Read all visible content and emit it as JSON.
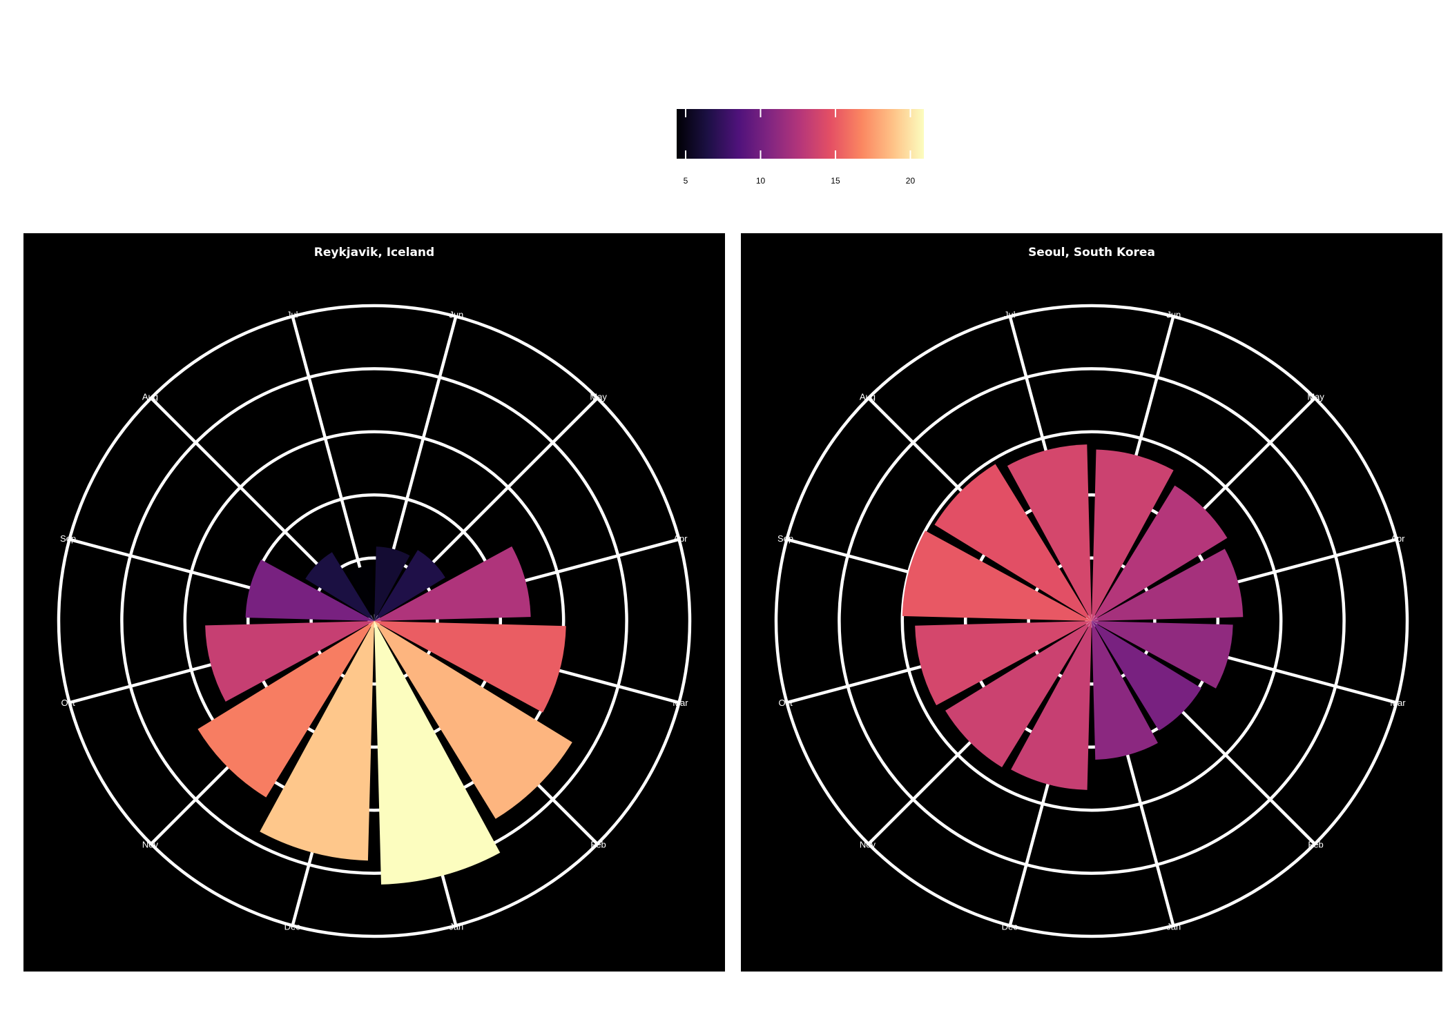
{
  "colors": {
    "background": "#ffffff",
    "panel_background": "#000000",
    "grid": "#ffffff",
    "colormap": [
      "#000004",
      "#1c1044",
      "#4f127b",
      "#812581",
      "#b5367a",
      "#e55064",
      "#fb8761",
      "#fec287",
      "#fcfdbf"
    ],
    "colormap_name": "rocket"
  },
  "legend": {
    "type": "colorbar",
    "orientation": "horizontal",
    "range": [
      4.4,
      20.9
    ],
    "ticks": [
      {
        "value": 5,
        "label": "5"
      },
      {
        "value": 10,
        "label": "10"
      },
      {
        "value": 15,
        "label": "15"
      },
      {
        "value": 20,
        "label": "20"
      }
    ]
  },
  "chart_data": [
    {
      "type": "bar",
      "coord": "polar",
      "title": "Reykjavik, Iceland",
      "radial_grid": [
        5,
        10,
        15,
        20,
        25
      ],
      "radial_range": [
        0,
        27
      ],
      "categories": [
        "Jan",
        "Feb",
        "Mar",
        "Apr",
        "May",
        "Jun",
        "Jul",
        "Aug",
        "Sep",
        "Oct",
        "Nov",
        "Dec"
      ],
      "values": [
        20.9,
        18.4,
        15.2,
        12.4,
        6.6,
        5.9,
        4.4,
        6.4,
        10.2,
        13.4,
        16.4,
        19.0
      ]
    },
    {
      "type": "bar",
      "coord": "polar",
      "title": "Seoul, South Korea",
      "radial_grid": [
        5,
        10,
        15,
        20,
        25
      ],
      "radial_range": [
        0,
        27
      ],
      "categories": [
        "Jan",
        "Feb",
        "Mar",
        "Apr",
        "May",
        "Jun",
        "Jul",
        "Aug",
        "Sep",
        "Oct",
        "Nov",
        "Dec"
      ],
      "values": [
        11.0,
        10.2,
        11.2,
        12.0,
        12.6,
        13.6,
        14.0,
        14.6,
        15.0,
        14.0,
        13.6,
        13.4
      ]
    }
  ]
}
